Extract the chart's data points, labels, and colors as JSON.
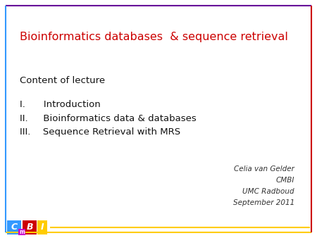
{
  "title": "Bioinformatics databases  & sequence retrieval",
  "title_color": "#cc0000",
  "content_header": "Content of lecture",
  "items": [
    "I.    Introduction",
    "II.   Bioinformatics data & databases",
    "III.  Sequence Retrieval with MRS"
  ],
  "author_lines": [
    "Celia van Gelder",
    "CMBI",
    "UMC Radboud",
    "September 2011"
  ],
  "border_left_color": "#3399ff",
  "border_right_color": "#cc0000",
  "border_top_color": "#660099",
  "border_bottom_color": "#ffcc00",
  "logo_C_color": "#3399ff",
  "logo_m_color": "#cc00cc",
  "logo_B_color": "#cc0000",
  "logo_I_color": "#ffcc00",
  "background_color": "#ffffff",
  "fig_width": 4.5,
  "fig_height": 3.38,
  "dpi": 100
}
